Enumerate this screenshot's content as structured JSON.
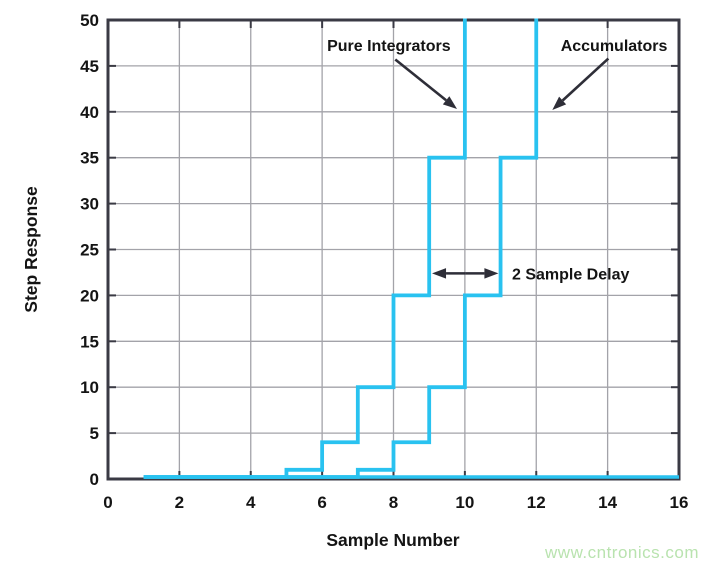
{
  "chart_data": {
    "type": "line",
    "subtype": "step",
    "title": "",
    "xlabel": "Sample Number",
    "ylabel": "Step Response",
    "xlim": [
      0,
      16
    ],
    "ylim": [
      0,
      50
    ],
    "xticks": [
      0,
      2,
      4,
      6,
      8,
      10,
      12,
      14,
      16
    ],
    "yticks": [
      0,
      5,
      10,
      15,
      20,
      25,
      30,
      35,
      40,
      45,
      50
    ],
    "grid": true,
    "legend": null,
    "series": [
      {
        "name": "Pure Integrators",
        "step_points": [
          [
            1,
            0
          ],
          [
            5,
            1
          ],
          [
            6,
            4
          ],
          [
            7,
            10
          ],
          [
            8,
            20
          ],
          [
            9,
            35
          ],
          [
            10,
            56
          ]
        ]
      },
      {
        "name": "Accumulators",
        "step_points": [
          [
            1,
            0
          ],
          [
            7,
            1
          ],
          [
            8,
            4
          ],
          [
            9,
            10
          ],
          [
            10,
            20
          ],
          [
            11,
            35
          ],
          [
            12,
            56
          ]
        ]
      }
    ],
    "zero_baseline": {
      "x_start": 1,
      "x_end": 16,
      "y": 0
    },
    "annotations": [
      {
        "text": "Pure Integrators",
        "text_x": 7.87,
        "text_y": 47.3,
        "arrow_from_x": 8.05,
        "arrow_from_y": 45.7,
        "arrow_to_x": 9.78,
        "arrow_to_y": 40.3
      },
      {
        "text": "Accumulators",
        "text_x": 14.18,
        "text_y": 47.3,
        "arrow_from_x": 14.02,
        "arrow_from_y": 45.8,
        "arrow_to_x": 12.45,
        "arrow_to_y": 40.2
      },
      {
        "text": "2 Sample Delay",
        "text_x": 11.32,
        "text_y": 22.4,
        "double_arrow": {
          "x1": 9.08,
          "x2": 10.94,
          "y": 22.4
        }
      }
    ]
  },
  "colors": {
    "curve": "#29c2f0",
    "grid": "#a3a3a9",
    "spine": "#3a3a44",
    "text": "#141414",
    "arrow": "#2e2e38"
  },
  "watermark": {
    "text": "www.cntronics.com",
    "color": "#b9e3af"
  }
}
